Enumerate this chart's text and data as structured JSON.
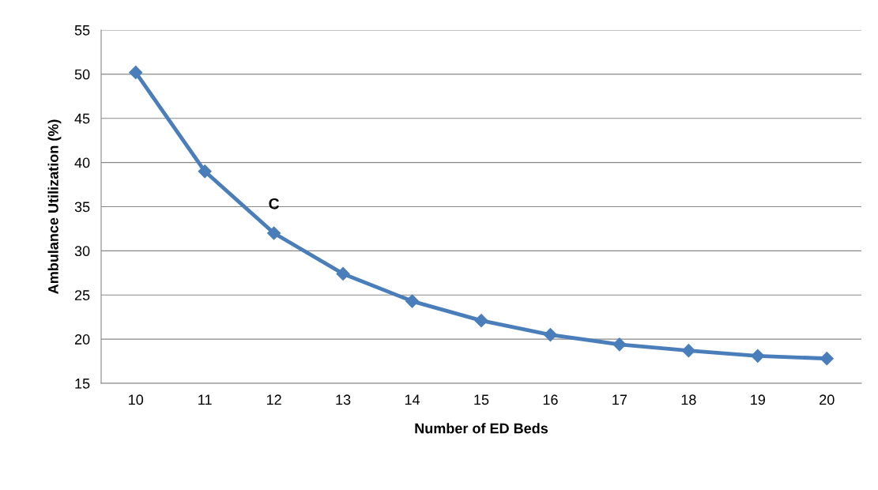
{
  "chart_data": {
    "type": "line",
    "xlabel": "Number of ED Beds",
    "ylabel": "Ambulance Utilization (%)",
    "categories": [
      "10",
      "11",
      "12",
      "13",
      "14",
      "15",
      "16",
      "17",
      "18",
      "19",
      "20"
    ],
    "series": [
      {
        "color": "#4a7ebb",
        "values": [
          50.2,
          39.0,
          32.0,
          27.4,
          24.3,
          22.1,
          20.5,
          19.4,
          18.7,
          18.1,
          17.8
        ]
      }
    ],
    "ylim": [
      15,
      55
    ],
    "yticks": [
      15,
      20,
      25,
      30,
      35,
      40,
      45,
      50,
      55
    ],
    "grid": "y",
    "marker": "diamond",
    "line_style": "solid",
    "legend": false,
    "annotations": [
      {
        "text": "C",
        "x": "12",
        "y": 32.0
      }
    ]
  }
}
